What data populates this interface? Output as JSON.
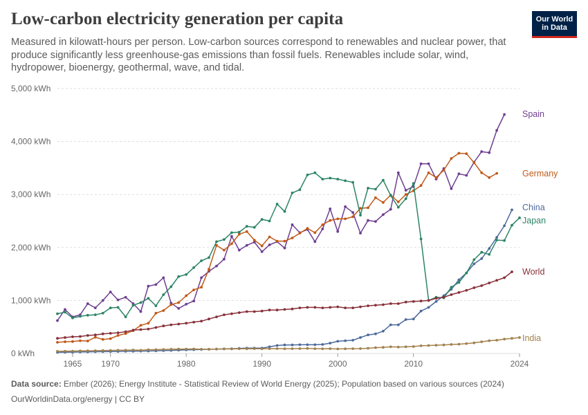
{
  "title": "Low-carbon electricity generation per capita",
  "subtitle": "Measured in kilowatt-hours per person. Low-carbon sources correspond to renewables and nuclear power, that produce significantly less greenhouse-gas emissions than fossil fuels. Renewables include solar, wind, hydropower, bioenergy, geothermal, wave, and tidal.",
  "logo": {
    "line1": "Our World",
    "line2": "in Data"
  },
  "footer": {
    "source_label": "Data source:",
    "source_text": "Ember (2026); Energy Institute - Statistical Review of World Energy (2025); Population based on various sources (2024)",
    "url_text": "OurWorldinData.org/energy | CC BY"
  },
  "colors": {
    "Spain": "#6d3e91",
    "Germany": "#c05917",
    "China": "#4c6a9c",
    "Japan": "#2c8465",
    "World": "#883039",
    "India": "#a2814c",
    "grid": "#dddddd",
    "axis_text": "#666666"
  },
  "chart_data": {
    "type": "line",
    "title": "Low-carbon electricity generation per capita",
    "xlabel": "",
    "ylabel": "",
    "ylim": [
      0,
      5000
    ],
    "xlim": [
      1963,
      2024
    ],
    "x_ticks": [
      1965,
      1970,
      1980,
      1990,
      2000,
      2010,
      2024
    ],
    "y_ticks": [
      {
        "value": 0,
        "label": "0 kWh"
      },
      {
        "value": 1000,
        "label": "1,000 kWh"
      },
      {
        "value": 2000,
        "label": "2,000 kWh"
      },
      {
        "value": 3000,
        "label": "3,000 kWh"
      },
      {
        "value": 4000,
        "label": "4,000 kWh"
      },
      {
        "value": 5000,
        "label": "5,000 kWh"
      }
    ],
    "grid": "horizontal dashed",
    "legend": "labels at line ends (right)",
    "x": [
      1963,
      1964,
      1965,
      1966,
      1967,
      1968,
      1969,
      1970,
      1971,
      1972,
      1973,
      1974,
      1975,
      1976,
      1977,
      1978,
      1979,
      1980,
      1981,
      1982,
      1983,
      1984,
      1985,
      1986,
      1987,
      1988,
      1989,
      1990,
      1991,
      1992,
      1993,
      1994,
      1995,
      1996,
      1997,
      1998,
      1999,
      2000,
      2001,
      2002,
      2003,
      2004,
      2005,
      2006,
      2007,
      2008,
      2009,
      2010,
      2011,
      2012,
      2013,
      2014,
      2015,
      2016,
      2017,
      2018,
      2019,
      2020,
      2021,
      2022,
      2023,
      2024
    ],
    "series": [
      {
        "name": "Spain",
        "values": [
          620,
          830,
          690,
          730,
          940,
          860,
          1000,
          1160,
          1010,
          1060,
          940,
          790,
          1270,
          1300,
          1430,
          950,
          850,
          930,
          990,
          1430,
          1550,
          1650,
          1780,
          2210,
          1950,
          2040,
          2100,
          1920,
          2050,
          2110,
          1990,
          2430,
          2280,
          2340,
          2110,
          2350,
          2730,
          2300,
          2770,
          2660,
          2270,
          2510,
          2490,
          2620,
          2720,
          3410,
          3080,
          3150,
          3580,
          3580,
          3290,
          3490,
          3110,
          3390,
          3360,
          3610,
          3810,
          3790,
          4210,
          4510,
          null,
          null
        ]
      },
      {
        "name": "Germany",
        "values": [
          210,
          220,
          225,
          240,
          235,
          305,
          265,
          280,
          340,
          375,
          430,
          530,
          570,
          760,
          810,
          920,
          960,
          1090,
          1200,
          1250,
          1590,
          2040,
          1950,
          2070,
          2250,
          2300,
          2140,
          2030,
          2200,
          2120,
          2120,
          2180,
          2270,
          2360,
          2280,
          2430,
          2510,
          2540,
          2540,
          2580,
          2740,
          2750,
          2940,
          2850,
          2990,
          2860,
          3000,
          3070,
          3170,
          3410,
          3320,
          3460,
          3680,
          3780,
          3770,
          3600,
          3410,
          3320,
          3400,
          null,
          null,
          null
        ]
      },
      {
        "name": "China",
        "values": [
          20,
          22,
          25,
          28,
          30,
          32,
          34,
          36,
          38,
          40,
          42,
          44,
          46,
          50,
          54,
          58,
          62,
          66,
          70,
          74,
          78,
          82,
          86,
          90,
          95,
          100,
          100,
          100,
          125,
          150,
          160,
          160,
          165,
          165,
          165,
          170,
          195,
          230,
          240,
          250,
          300,
          350,
          370,
          420,
          540,
          540,
          640,
          650,
          800,
          870,
          980,
          1090,
          1210,
          1390,
          1520,
          1690,
          1790,
          1980,
          2190,
          2410,
          2710,
          null
        ]
      },
      {
        "name": "Japan",
        "values": [
          750,
          780,
          670,
          700,
          720,
          730,
          760,
          860,
          870,
          690,
          910,
          960,
          1040,
          900,
          1110,
          1260,
          1450,
          1490,
          1620,
          1750,
          1810,
          2110,
          2150,
          2280,
          2290,
          2400,
          2380,
          2530,
          2500,
          2820,
          2680,
          3030,
          3090,
          3370,
          3410,
          3290,
          3310,
          3290,
          3260,
          3230,
          2610,
          3120,
          3100,
          3270,
          2980,
          2760,
          2920,
          3210,
          2160,
          1000,
          1060,
          1050,
          1250,
          1340,
          1520,
          1770,
          1910,
          1870,
          2140,
          2130,
          2420,
          2560
        ]
      },
      {
        "name": "World",
        "values": [
          285,
          300,
          315,
          320,
          340,
          350,
          370,
          380,
          390,
          410,
          440,
          450,
          460,
          490,
          520,
          540,
          555,
          570,
          590,
          610,
          650,
          690,
          730,
          750,
          770,
          790,
          790,
          800,
          820,
          820,
          830,
          840,
          860,
          870,
          870,
          860,
          870,
          880,
          860,
          860,
          880,
          900,
          910,
          920,
          940,
          940,
          970,
          980,
          990,
          1000,
          1040,
          1060,
          1110,
          1150,
          1190,
          1240,
          1280,
          1330,
          1380,
          1430,
          1540,
          null
        ]
      },
      {
        "name": "India",
        "values": [
          40,
          42,
          45,
          48,
          50,
          52,
          55,
          58,
          60,
          62,
          65,
          60,
          70,
          72,
          75,
          80,
          82,
          84,
          85,
          80,
          80,
          82,
          85,
          85,
          88,
          88,
          90,
          88,
          90,
          92,
          88,
          90,
          92,
          95,
          90,
          88,
          90,
          85,
          88,
          90,
          92,
          98,
          110,
          115,
          125,
          120,
          125,
          130,
          145,
          150,
          155,
          160,
          170,
          175,
          185,
          200,
          220,
          240,
          250,
          270,
          285,
          300
        ]
      }
    ]
  }
}
